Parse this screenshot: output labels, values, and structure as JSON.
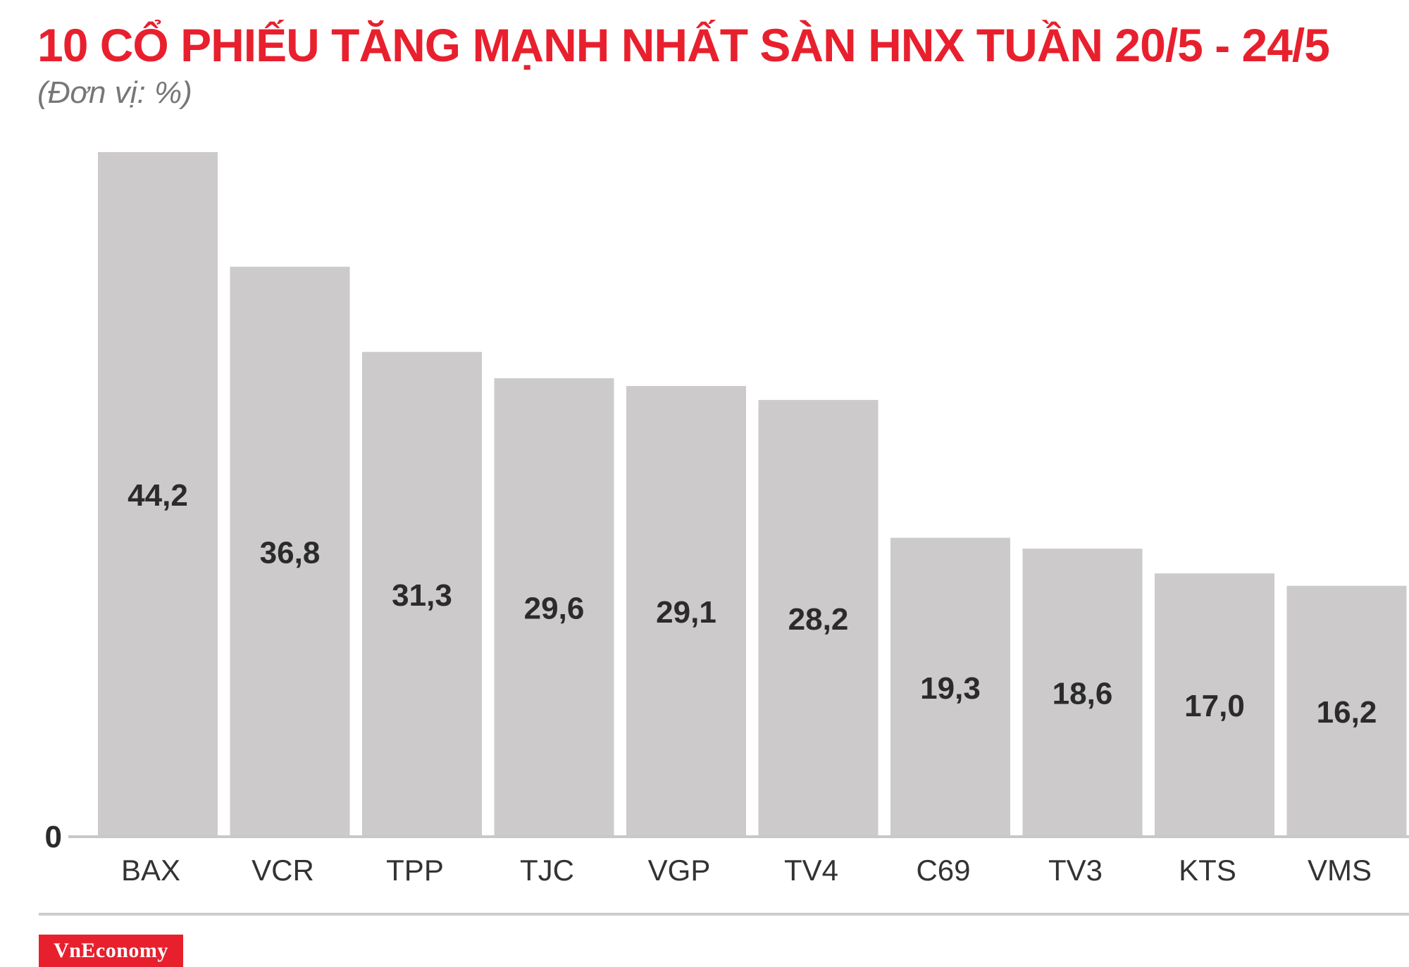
{
  "header": {
    "title": "10 CỔ PHIẾU TĂNG MẠNH NHẤT SÀN HNX TUẦN 20/5 - 24/5",
    "unit": "(Đơn vị: %)"
  },
  "brand": {
    "logo_text": "VnEconomy"
  },
  "colors": {
    "title": "#e8202e",
    "bar": "#cccacb",
    "value_label": "#2b2b2b",
    "brand_bg": "#e8202e"
  },
  "chart_data": {
    "type": "bar",
    "title": "10 CỔ PHIẾU TĂNG MẠNH NHẤT SÀN HNX TUẦN 20/5 - 24/5",
    "subtitle": "(Đơn vị: %)",
    "categories": [
      "BAX",
      "VCR",
      "TPP",
      "TJC",
      "VGP",
      "TV4",
      "C69",
      "TV3",
      "KTS",
      "VMS"
    ],
    "values": [
      44.2,
      36.8,
      31.3,
      29.6,
      29.1,
      28.2,
      19.3,
      18.6,
      17.0,
      16.2
    ],
    "value_labels": [
      "44,2",
      "36,8",
      "31,3",
      "29,6",
      "29,1",
      "28,2",
      "19,3",
      "18,6",
      "17,0",
      "16,2"
    ],
    "y_tick_labels": [
      "0"
    ],
    "ylim": [
      0,
      44.2
    ],
    "grid": false,
    "legend": "none"
  }
}
